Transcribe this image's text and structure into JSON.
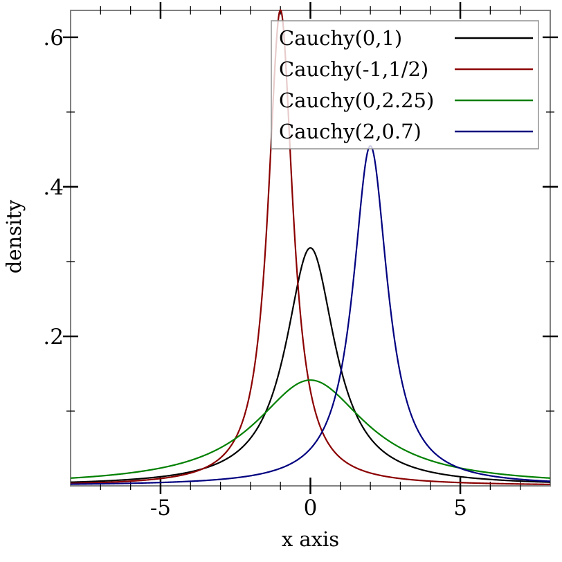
{
  "chart_data": {
    "type": "line",
    "title": "",
    "xlabel": "x axis",
    "ylabel": "density",
    "xlim": [
      -8,
      8
    ],
    "ylim": [
      0,
      0.636
    ],
    "grid": false,
    "frame_color": "#808080",
    "tick_color": "#000000",
    "x_ticks": {
      "major": [
        {
          "value": -5,
          "label": "-5"
        },
        {
          "value": 0,
          "label": "0"
        },
        {
          "value": 5,
          "label": "5"
        }
      ],
      "minor_values": [
        -7,
        -6,
        -4,
        -3,
        -2,
        -1,
        1,
        2,
        3,
        4,
        6,
        7
      ]
    },
    "y_ticks": {
      "major": [
        {
          "value": 0.2,
          "label": ".2"
        },
        {
          "value": 0.4,
          "label": ".4"
        },
        {
          "value": 0.6,
          "label": ".6"
        }
      ],
      "minor_values": [
        0.1,
        0.3,
        0.5
      ]
    },
    "series": [
      {
        "name": "Cauchy(0,1)",
        "distribution": "cauchy",
        "location": 0,
        "scale": 1,
        "peak_density": 0.318,
        "color": "#000000"
      },
      {
        "name": "Cauchy(-1,1/2)",
        "distribution": "cauchy",
        "location": -1,
        "scale": 0.5,
        "peak_density": 0.637,
        "color": "#8b0000"
      },
      {
        "name": "Cauchy(0,2.25)",
        "distribution": "cauchy",
        "location": 0,
        "scale": 2.25,
        "peak_density": 0.141,
        "color": "#008000"
      },
      {
        "name": "Cauchy(2,0.7)",
        "distribution": "cauchy",
        "location": 2,
        "scale": 0.7,
        "peak_density": 0.455,
        "color": "#000080"
      }
    ],
    "legend": {
      "position": "top-right",
      "background": "rgba(255,255,255,0.8)",
      "border_color": "#909090",
      "entries": [
        "Cauchy(0,1)",
        "Cauchy(-1,1/2)",
        "Cauchy(0,2.25)",
        "Cauchy(2,0.7)"
      ]
    }
  }
}
